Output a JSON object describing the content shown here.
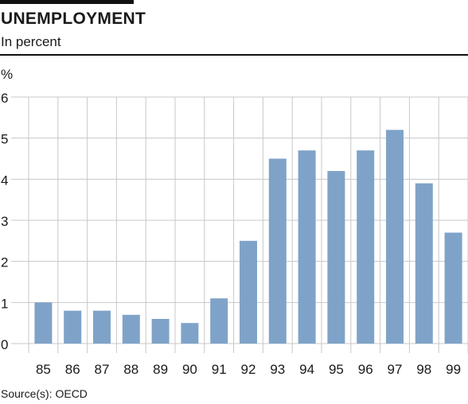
{
  "chart_data": {
    "type": "bar",
    "title": "UNEMPLOYMENT",
    "subtitle": "In percent",
    "ylabel": "%",
    "xlabel": "",
    "categories": [
      "85",
      "86",
      "87",
      "88",
      "89",
      "90",
      "91",
      "92",
      "93",
      "94",
      "95",
      "96",
      "97",
      "98",
      "99"
    ],
    "values": [
      1.0,
      0.8,
      0.8,
      0.7,
      0.6,
      0.5,
      1.1,
      2.5,
      4.5,
      4.7,
      4.2,
      4.7,
      5.2,
      3.9,
      2.7
    ],
    "yticks": [
      "0",
      "1",
      "2",
      "3",
      "4",
      "5",
      "6"
    ],
    "ylim": [
      0,
      6
    ],
    "grid": true,
    "legend": "none",
    "source": "Source(s): OECD",
    "colors": {
      "bar": "#7fa3c8",
      "grid": "#c8c8c8",
      "text": "#1a1a1a"
    }
  }
}
